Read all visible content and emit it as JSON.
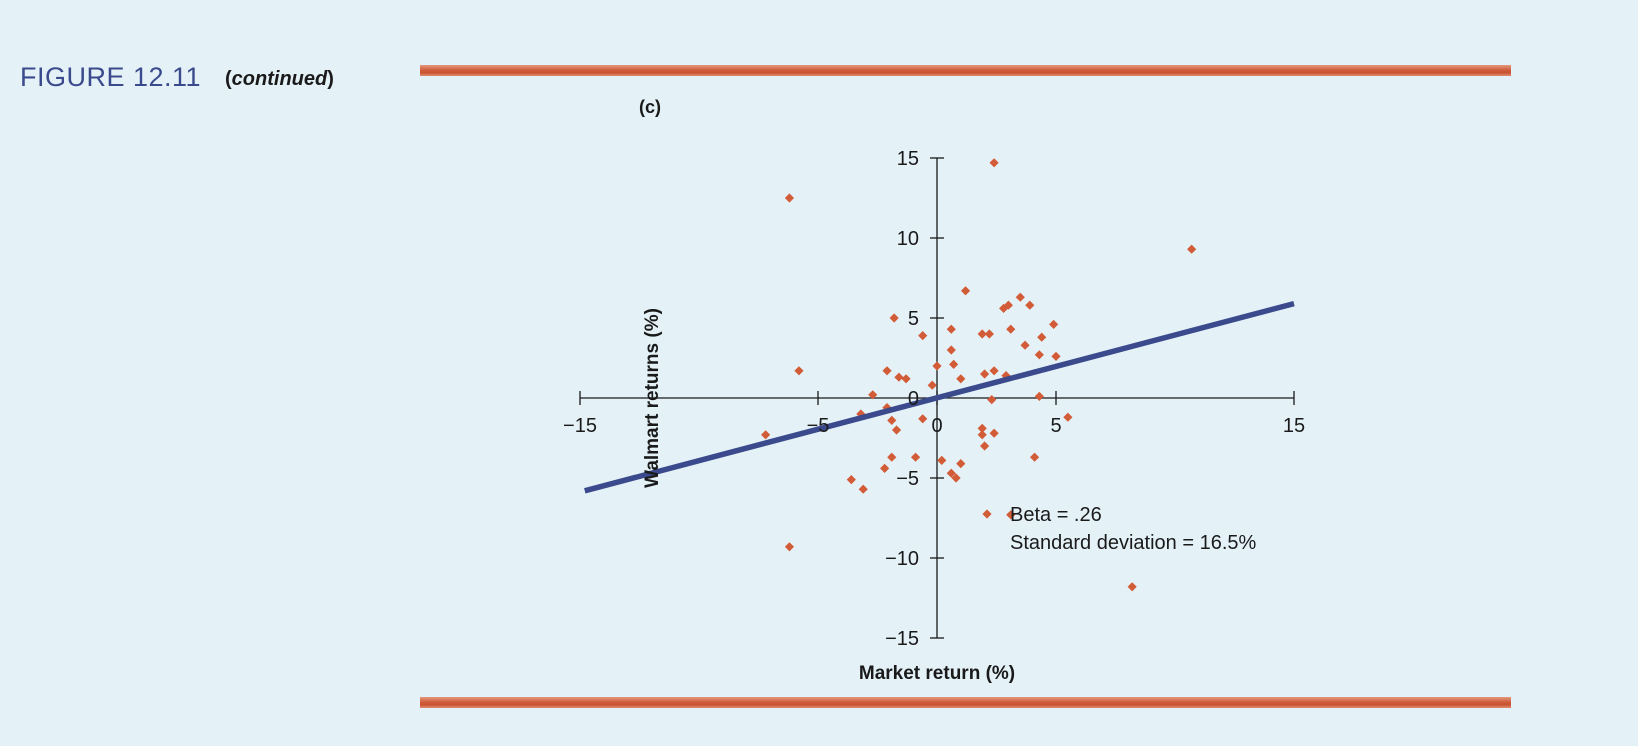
{
  "figure": {
    "label": "FIGURE 12.11",
    "continued_open": "(",
    "continued": "continued",
    "continued_close": ")",
    "panel": "(c)"
  },
  "colors": {
    "background": "#e4f2f8",
    "title_blue": "#3b4a8c",
    "point": "#d25c37",
    "regression_line": "#3b4a8c",
    "rule": "#cf5f3c"
  },
  "chart_data": {
    "type": "scatter",
    "xlabel": "Market return (%)",
    "ylabel": "Walmart returns (%)",
    "xlim": [
      -15,
      15
    ],
    "ylim": [
      -15,
      15
    ],
    "x_ticks": [
      -15,
      -5,
      0,
      5,
      15
    ],
    "x_tick_labels": [
      "−15",
      "−5",
      "0",
      "5",
      "15"
    ],
    "y_ticks": [
      15,
      10,
      5,
      0,
      -5,
      -10,
      -15
    ],
    "y_tick_labels": [
      "15",
      "10",
      "5",
      "0",
      "−5",
      "−10",
      "−15"
    ],
    "grid": false,
    "annotation": {
      "beta": "Beta = .26",
      "std": "Standard deviation = 16.5%"
    },
    "regression_line": {
      "x": [
        -14.8,
        15
      ],
      "y": [
        -5.8,
        5.9
      ]
    },
    "points": [
      {
        "x": 2.4,
        "y": 14.7
      },
      {
        "x": -6.2,
        "y": 12.5
      },
      {
        "x": 10.7,
        "y": 9.3
      },
      {
        "x": 1.2,
        "y": 6.7
      },
      {
        "x": 3.5,
        "y": 6.3
      },
      {
        "x": 3.0,
        "y": 5.8
      },
      {
        "x": 3.9,
        "y": 5.8
      },
      {
        "x": 2.8,
        "y": 5.6
      },
      {
        "x": -1.8,
        "y": 5.0
      },
      {
        "x": 4.9,
        "y": 4.6
      },
      {
        "x": 0.6,
        "y": 4.3
      },
      {
        "x": 3.1,
        "y": 4.3
      },
      {
        "x": 1.9,
        "y": 4.0
      },
      {
        "x": 2.2,
        "y": 4.0
      },
      {
        "x": -0.6,
        "y": 3.9
      },
      {
        "x": 4.4,
        "y": 3.8
      },
      {
        "x": 3.7,
        "y": 3.3
      },
      {
        "x": 0.6,
        "y": 3.0
      },
      {
        "x": 4.3,
        "y": 2.7
      },
      {
        "x": 5.0,
        "y": 2.6
      },
      {
        "x": 0.7,
        "y": 2.1
      },
      {
        "x": 0.0,
        "y": 2.0
      },
      {
        "x": -5.8,
        "y": 1.7
      },
      {
        "x": -2.1,
        "y": 1.7
      },
      {
        "x": 2.4,
        "y": 1.7
      },
      {
        "x": 2.0,
        "y": 1.5
      },
      {
        "x": 2.9,
        "y": 1.4
      },
      {
        "x": -1.6,
        "y": 1.3
      },
      {
        "x": 1.0,
        "y": 1.2
      },
      {
        "x": -1.3,
        "y": 1.2
      },
      {
        "x": -0.2,
        "y": 0.8
      },
      {
        "x": -2.7,
        "y": 0.2
      },
      {
        "x": 4.3,
        "y": 0.1
      },
      {
        "x": 2.3,
        "y": -0.1
      },
      {
        "x": -2.1,
        "y": -0.6
      },
      {
        "x": -3.2,
        "y": -1.0
      },
      {
        "x": 5.5,
        "y": -1.2
      },
      {
        "x": -0.6,
        "y": -1.3
      },
      {
        "x": -1.9,
        "y": -1.4
      },
      {
        "x": 1.9,
        "y": -1.9
      },
      {
        "x": -1.7,
        "y": -2.0
      },
      {
        "x": 2.4,
        "y": -2.2
      },
      {
        "x": 1.9,
        "y": -2.3
      },
      {
        "x": -7.2,
        "y": -2.3
      },
      {
        "x": 2.0,
        "y": -3.0
      },
      {
        "x": -1.9,
        "y": -3.7
      },
      {
        "x": -0.9,
        "y": -3.7
      },
      {
        "x": 4.1,
        "y": -3.7
      },
      {
        "x": 0.2,
        "y": -3.9
      },
      {
        "x": 1.0,
        "y": -4.1
      },
      {
        "x": -2.2,
        "y": -4.4
      },
      {
        "x": 0.6,
        "y": -4.7
      },
      {
        "x": 0.8,
        "y": -5.0
      },
      {
        "x": -3.6,
        "y": -5.1
      },
      {
        "x": -3.1,
        "y": -5.7
      },
      {
        "x": 3.1,
        "y": -7.3
      },
      {
        "x": -6.2,
        "y": -9.3
      },
      {
        "x": 8.2,
        "y": -11.8
      }
    ]
  }
}
